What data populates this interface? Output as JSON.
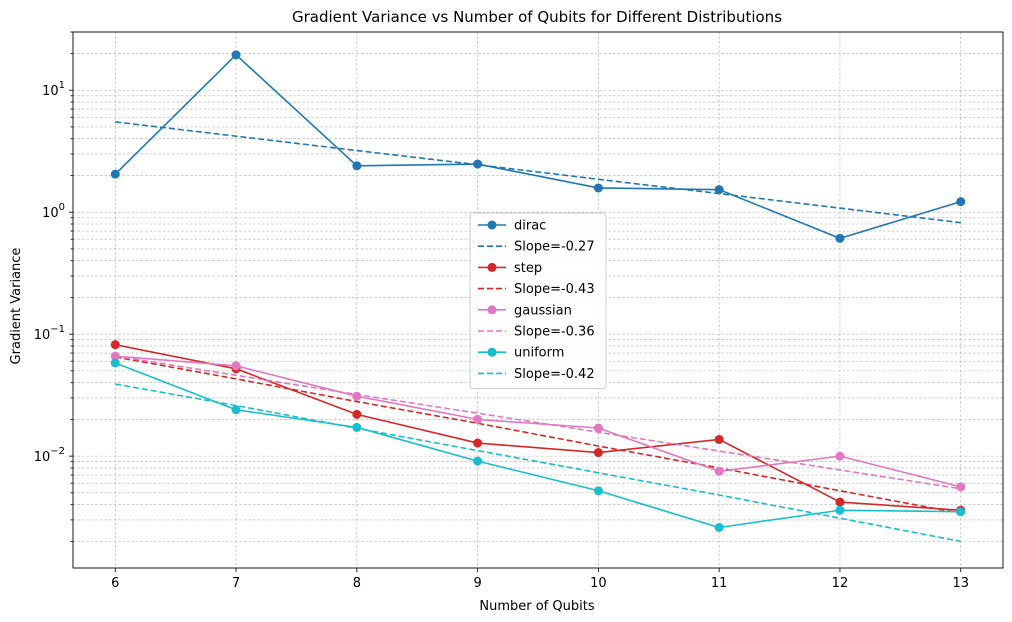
{
  "chart_data": {
    "type": "line",
    "title": "Gradient Variance vs Number of Qubits for Different Distributions",
    "xlabel": "Number of Qubits",
    "ylabel": "Gradient Variance",
    "xlim": [
      5.65,
      13.35
    ],
    "ylim": [
      0.00121,
      30
    ],
    "yscale": "log",
    "grid": true,
    "legend_position": "center",
    "x": [
      6,
      7,
      8,
      9,
      10,
      11,
      12,
      13
    ],
    "x_tick_labels": [
      "6",
      "7",
      "8",
      "9",
      "10",
      "11",
      "12",
      "13"
    ],
    "y_ticks": [
      {
        "value": 0.01,
        "base": "10",
        "exp": "−2"
      },
      {
        "value": 0.1,
        "base": "10",
        "exp": "−1"
      },
      {
        "value": 1,
        "base": "10",
        "exp": "0"
      },
      {
        "value": 10,
        "base": "10",
        "exp": "1"
      }
    ],
    "series": [
      {
        "name": "dirac",
        "color": "#1f77b4",
        "style": "solid",
        "marker": true,
        "values": [
          2.05,
          19.5,
          2.4,
          2.48,
          1.58,
          1.53,
          0.61,
          1.22
        ]
      },
      {
        "name": "Slope=-0.27",
        "color": "#1f77b4",
        "style": "dashed",
        "marker": false,
        "values": [
          5.5,
          4.2,
          3.2,
          2.45,
          1.86,
          1.42,
          1.08,
          0.82
        ]
      },
      {
        "name": "step",
        "color": "#d62728",
        "style": "solid",
        "marker": true,
        "values": [
          0.082,
          0.052,
          0.022,
          0.0128,
          0.0107,
          0.0137,
          0.0042,
          0.0036
        ]
      },
      {
        "name": "Slope=-0.43",
        "color": "#d62728",
        "style": "dashed",
        "marker": false,
        "values": [
          0.065,
          0.043,
          0.028,
          0.0186,
          0.0121,
          0.008,
          0.0052,
          0.0034
        ]
      },
      {
        "name": "gaussian",
        "color": "#e377c2",
        "style": "solid",
        "marker": true,
        "values": [
          0.066,
          0.055,
          0.031,
          0.02,
          0.017,
          0.0075,
          0.01,
          0.0056
        ]
      },
      {
        "name": "Slope=-0.36",
        "color": "#e377c2",
        "style": "dashed",
        "marker": false,
        "values": [
          0.066,
          0.046,
          0.032,
          0.0225,
          0.0157,
          0.011,
          0.0077,
          0.0054
        ]
      },
      {
        "name": "uniform",
        "color": "#17becf",
        "style": "solid",
        "marker": true,
        "values": [
          0.058,
          0.024,
          0.0172,
          0.0091,
          0.0052,
          0.0026,
          0.0036,
          0.0035
        ]
      },
      {
        "name": "Slope=-0.42",
        "color": "#17becf",
        "style": "dashed",
        "marker": false,
        "values": [
          0.039,
          0.026,
          0.0169,
          0.0111,
          0.0073,
          0.0048,
          0.0031,
          0.002
        ]
      }
    ]
  }
}
